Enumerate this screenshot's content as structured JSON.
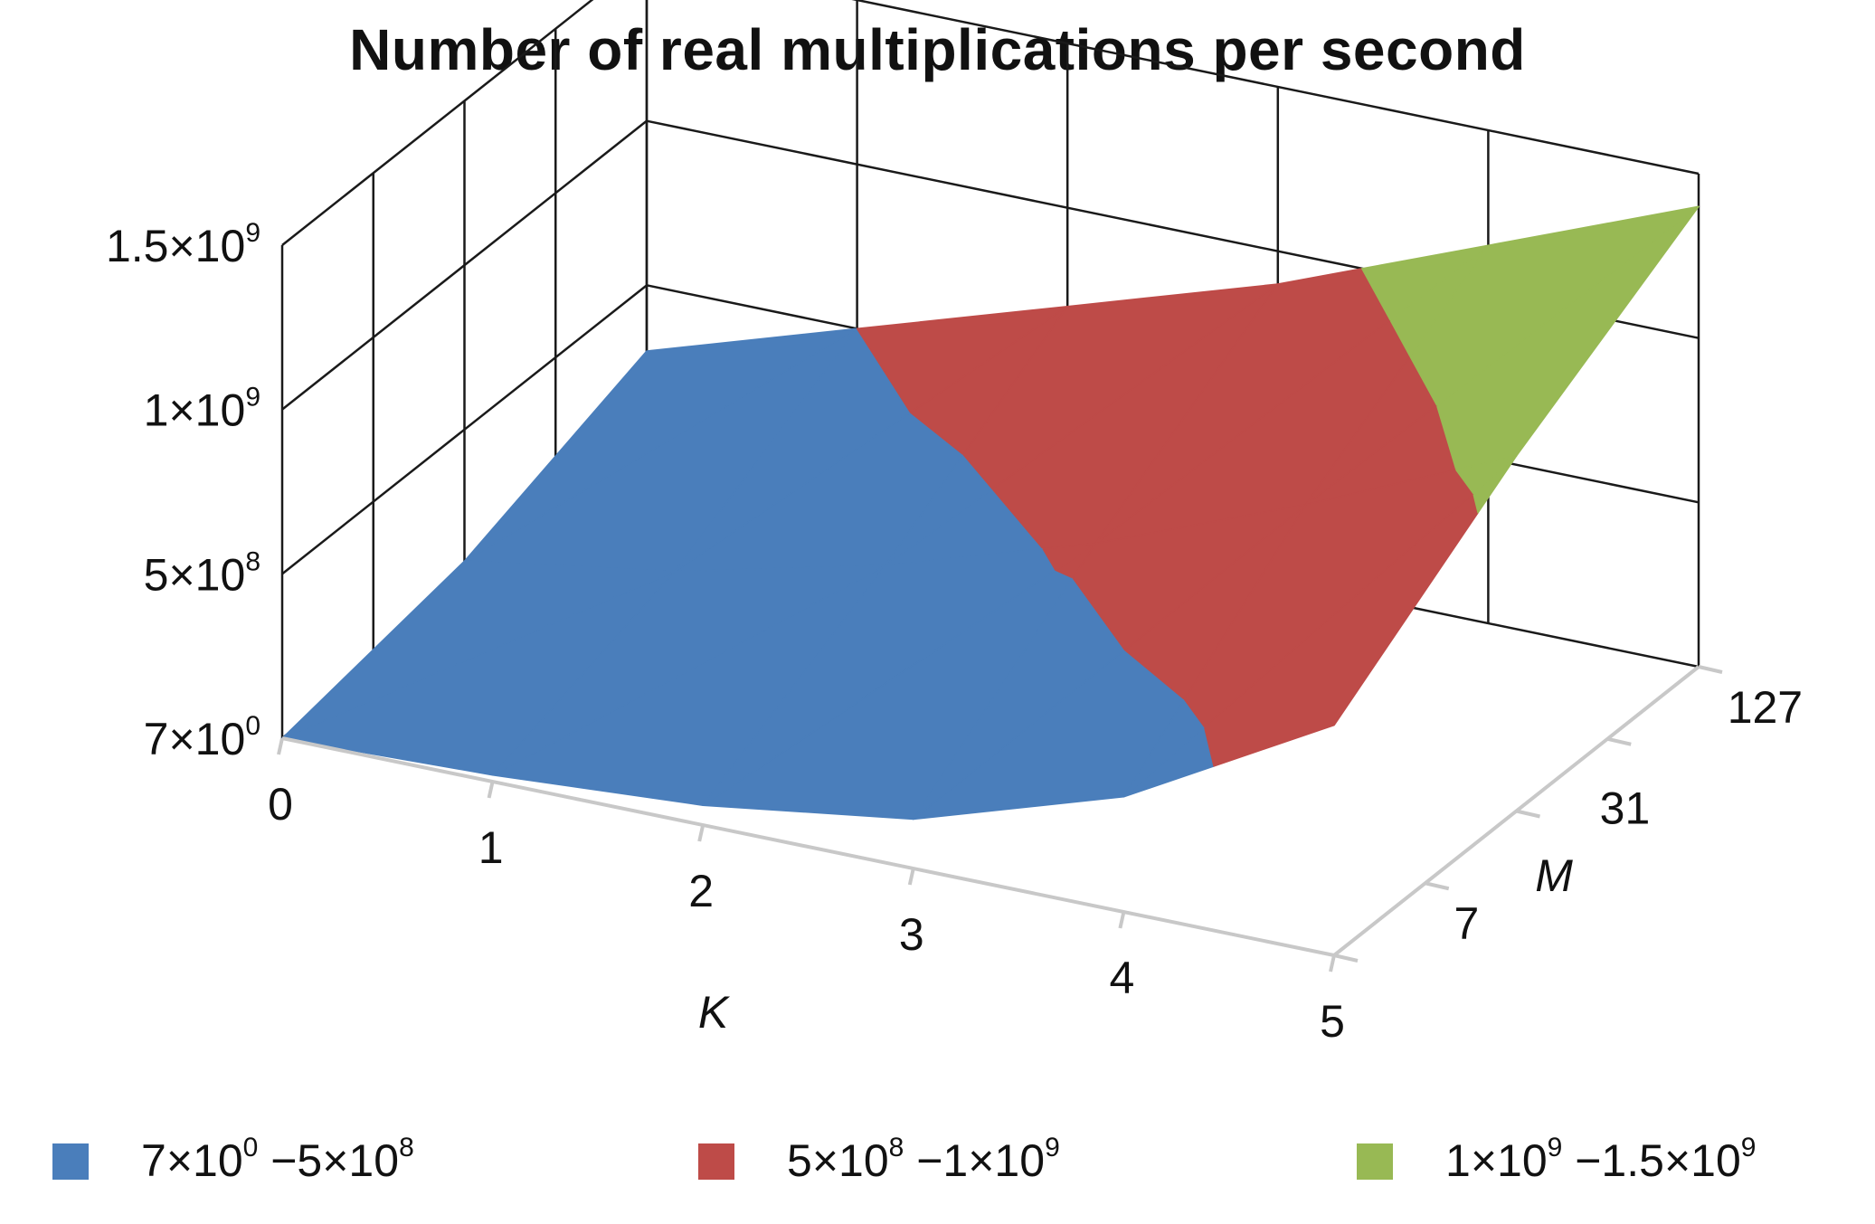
{
  "chart_data": {
    "type": "surface",
    "title": "Number of real multiplications per second",
    "x_axis": {
      "label": "K",
      "ticks": [
        "0",
        "1",
        "2",
        "3",
        "4",
        "5"
      ]
    },
    "y_axis": {
      "label": "M",
      "ticks": [
        "7",
        "31",
        "127"
      ]
    },
    "z_axis": {
      "ticks": [
        {
          "mantissa": "7",
          "exponent": "0"
        },
        {
          "mantissa": "5",
          "exponent": "8"
        },
        {
          "mantissa": "1",
          "exponent": "9"
        },
        {
          "mantissa": "1.5",
          "exponent": "9"
        }
      ],
      "zlim": [
        7,
        1500000000
      ]
    },
    "legend": {
      "placement": "bottom",
      "entries": [
        {
          "from_mantissa": "7",
          "from_exponent": "0",
          "to_mantissa": "5",
          "to_exponent": "8",
          "color": "#4a7ebb"
        },
        {
          "from_mantissa": "5",
          "from_exponent": "8",
          "to_mantissa": "1",
          "to_exponent": "9",
          "color": "#be4b48"
        },
        {
          "from_mantissa": "1",
          "from_exponent": "9",
          "to_mantissa": "1.5",
          "to_exponent": "9",
          "color": "#98b954"
        }
      ]
    },
    "surface_values": {
      "K": [
        0,
        1,
        2,
        3,
        4,
        5
      ],
      "M": [
        7,
        31,
        127
      ],
      "z": [
        [
          7,
          20000000,
          60000000,
          150000000,
          350000000,
          700000000
        ],
        [
          100000000,
          200000000,
          350000000,
          550000000,
          800000000,
          1080000000
        ],
        [
          300000000,
          500000000,
          700000000,
          900000000,
          1150000000,
          1400000000
        ]
      ]
    },
    "grid": true
  }
}
